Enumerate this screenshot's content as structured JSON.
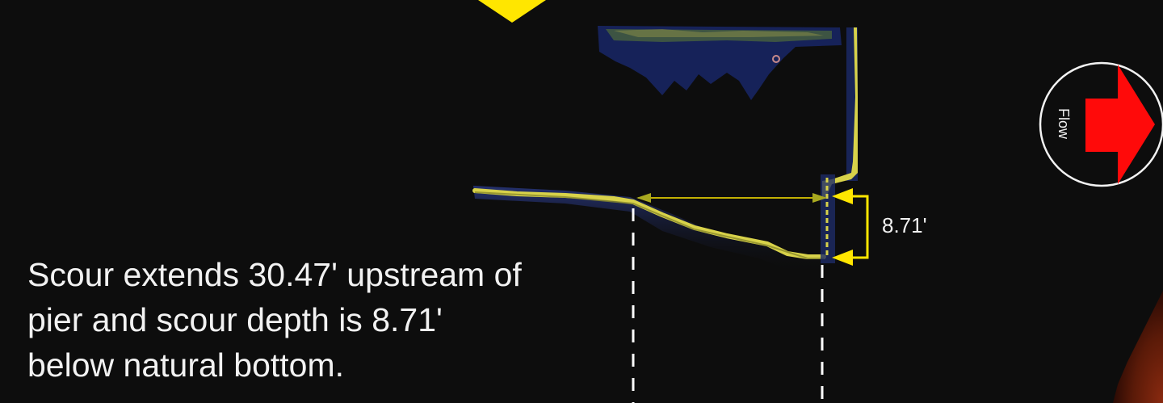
{
  "annotation": {
    "depth_value": "8.71'",
    "caption_lines": [
      "Scour extends 30.47' upstream of",
      "pier and scour depth is 8.71'",
      "below natural bottom."
    ]
  },
  "flow_indicator": {
    "label": "Flow",
    "arrow_color": "#ff0a0a"
  },
  "colors": {
    "background": "#0d0d0d",
    "marker_yellow": "#ffe600",
    "bed_profile": "#d8d24a",
    "sonar_blue": "#1a2a66",
    "guide_lines": "#ffffff"
  },
  "icons": {
    "position_marker": "yellow-triangle-down-icon",
    "flow_direction": "right-arrow-icon"
  }
}
